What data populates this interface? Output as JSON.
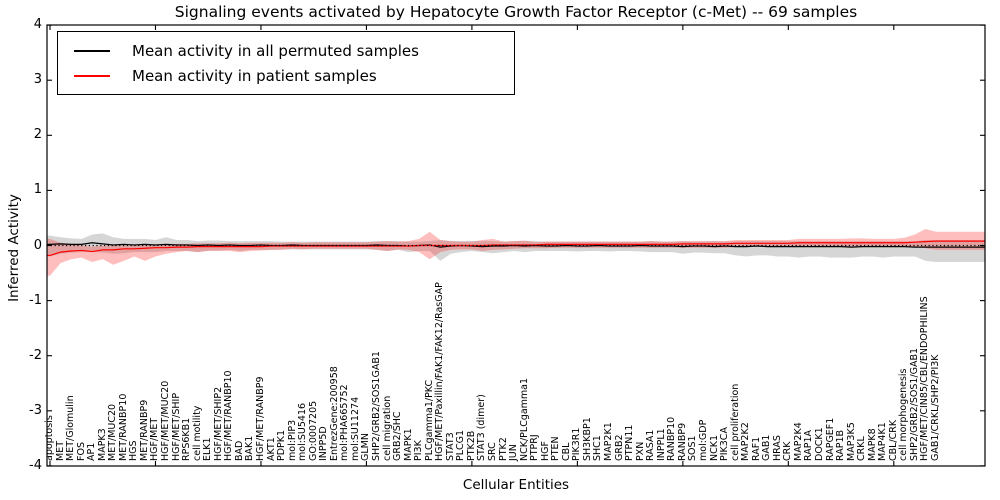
{
  "title": "Signaling events activated by Hepatocyte Growth Factor Receptor (c-Met) -- 69 samples",
  "legend": {
    "entries": [
      {
        "label": "Mean activity in all permuted samples",
        "color": "#000000"
      },
      {
        "label": "Mean activity in patient samples",
        "color": "#ff0000"
      }
    ]
  },
  "colors": {
    "permuted_line": "#000000",
    "patient_line": "#ff0000",
    "permuted_band": "rgba(120,120,120,0.30)",
    "patient_band": "rgba(255,40,40,0.30)",
    "axis": "#000000"
  },
  "chart_data": {
    "type": "line",
    "title": "Signaling events activated by Hepatocyte Growth Factor Receptor (c-Met) -- 69 samples",
    "xlabel": "Cellular Entities",
    "ylabel": "Inferred Activity",
    "ylim": [
      -4,
      4
    ],
    "yticks": [
      4,
      3,
      2,
      1,
      0,
      -1,
      -2,
      -3,
      -4
    ],
    "ytick_labels": [
      "4",
      "3",
      "2",
      "1",
      "0",
      "-1",
      "-2",
      "-3",
      "-4"
    ],
    "grid": false,
    "legend_position": "upper left",
    "zero_line": {
      "y": 0,
      "style": "dotted",
      "color": "#000000"
    },
    "categories": [
      "apoptosis",
      "MET",
      "MET/Glomulin",
      "FOS",
      "AP1",
      "MAPK3",
      "MET/MUC20",
      "MET/RANBP10",
      "HGS",
      "MET/RANBP9",
      "HGF/MET",
      "HGF/MET/MUC20",
      "HGF/MET/SHIP",
      "RPS6KB1",
      "cell motility",
      "ELK1",
      "HGF/MET/SHIP2",
      "HGF/MET/RANBP10",
      "BAD",
      "BAK1",
      "HGF/MET/RANBP9",
      "AKT1",
      "PDPK1",
      "mol:PIP3",
      "mol:SU5416",
      "GO:0007205",
      "INPP5D",
      "EntrezGene:200958",
      "mol:PHA665752",
      "mol:SU11274",
      "GLMN",
      "SHP2/GRB2/SOS1GAB1",
      "cell migration",
      "GRB2/SHC",
      "MAPK1",
      "PI3K",
      "PLCgamma1/PKC",
      "HGF/MET/Paxillin/FAK1/FAK12/RasGAP",
      "STAT3",
      "PLCG1",
      "PTK2B",
      "STAT3 (dimer)",
      "SRC",
      "PTK2",
      "JUN",
      "NCK/PLCgamma1",
      "PTPRJ",
      "HGF",
      "PTEN",
      "CBL",
      "PIK3R1",
      "SH3KBP1",
      "SHC1",
      "MAP2K1",
      "GRB2",
      "PTPN11",
      "PXN",
      "RASA1",
      "INPPL1",
      "RANBP10",
      "RANBP9",
      "SOS1",
      "mol:GDP",
      "NCK1",
      "PIK3CA",
      "cell proliferation",
      "MAP2K2",
      "RAF1",
      "GAB1",
      "HRAS",
      "CRK",
      "MAP2K4",
      "RAP1A",
      "DOCK1",
      "RAPGEF1",
      "RAP1B",
      "MAP3K5",
      "CRKL",
      "MAPK8",
      "MAP4K1",
      "CBL/CRK",
      "cell morphogenesis",
      "SHP2/GRB2/SOS1/GAB1",
      "HGF/MET/CIN85/CBL/ENDOPHILINS",
      "GAB1/CRKL/SHP2/PI3K"
    ],
    "series": [
      {
        "name": "Mean activity in all permuted samples",
        "color": "#000000",
        "values": [
          0.02,
          0.03,
          0.02,
          0.02,
          0.05,
          0.03,
          0.01,
          0.02,
          0.01,
          0.02,
          0.01,
          0.02,
          0.01,
          0.01,
          0.0,
          0.01,
          0.0,
          0.01,
          0.0,
          0.0,
          0.01,
          0.0,
          0.0,
          0.01,
          0.0,
          0.0,
          0.0,
          0.0,
          0.0,
          0.0,
          0.0,
          0.01,
          0.0,
          0.0,
          -0.01,
          0.0,
          0.01,
          -0.03,
          -0.01,
          0.0,
          -0.01,
          -0.02,
          -0.01,
          -0.01,
          0.0,
          -0.01,
          0.0,
          -0.01,
          -0.01,
          0.0,
          -0.01,
          -0.01,
          0.0,
          -0.01,
          -0.01,
          -0.01,
          0.0,
          -0.01,
          -0.01,
          -0.01,
          -0.02,
          -0.01,
          -0.01,
          -0.02,
          -0.01,
          -0.02,
          -0.02,
          -0.01,
          -0.02,
          -0.02,
          -0.02,
          -0.02,
          -0.02,
          -0.02,
          -0.02,
          -0.02,
          -0.03,
          -0.02,
          -0.02,
          -0.02,
          -0.02,
          -0.02,
          -0.03,
          -0.03,
          -0.03
        ]
      },
      {
        "name": "Mean activity in patient samples",
        "color": "#ff0000",
        "values": [
          -0.18,
          -0.12,
          -0.1,
          -0.09,
          -0.11,
          -0.08,
          -0.08,
          -0.06,
          -0.06,
          -0.05,
          -0.04,
          -0.04,
          -0.03,
          -0.03,
          -0.02,
          -0.02,
          -0.02,
          -0.02,
          -0.02,
          -0.02,
          -0.02,
          -0.01,
          -0.01,
          -0.01,
          -0.01,
          -0.01,
          -0.01,
          -0.01,
          -0.01,
          -0.01,
          -0.01,
          -0.01,
          -0.01,
          -0.01,
          -0.01,
          0.0,
          0.0,
          0.0,
          0.0,
          0.0,
          0.0,
          0.0,
          0.01,
          0.01,
          0.01,
          0.01,
          0.01,
          0.02,
          0.02,
          0.02,
          0.02,
          0.02,
          0.02,
          0.02,
          0.02,
          0.02,
          0.02,
          0.02,
          0.02,
          0.02,
          0.03,
          0.03,
          0.03,
          0.03,
          0.03,
          0.04,
          0.04,
          0.04,
          0.04,
          0.04,
          0.04,
          0.05,
          0.05,
          0.05,
          0.05,
          0.05,
          0.05,
          0.05,
          0.05,
          0.05,
          0.05,
          0.05,
          0.06,
          0.07,
          0.08
        ]
      }
    ],
    "bands": [
      {
        "name": "permuted samples range",
        "upper": [
          0.18,
          0.15,
          0.13,
          0.12,
          0.2,
          0.22,
          0.15,
          0.12,
          0.12,
          0.12,
          0.1,
          0.15,
          0.1,
          0.1,
          0.08,
          0.09,
          0.09,
          0.08,
          0.08,
          0.08,
          0.08,
          0.08,
          0.07,
          0.07,
          0.07,
          0.07,
          0.07,
          0.07,
          0.07,
          0.07,
          0.07,
          0.08,
          0.08,
          0.08,
          0.07,
          0.07,
          0.08,
          0.1,
          0.08,
          0.08,
          0.08,
          0.08,
          0.08,
          0.07,
          0.08,
          0.08,
          0.08,
          0.07,
          0.07,
          0.07,
          0.07,
          0.07,
          0.07,
          0.07,
          0.07,
          0.07,
          0.07,
          0.08,
          0.07,
          0.07,
          0.08,
          0.07,
          0.07,
          0.08,
          0.07,
          0.08,
          0.08,
          0.08,
          0.08,
          0.08,
          0.08,
          0.08,
          0.08,
          0.08,
          0.08,
          0.08,
          0.08,
          0.08,
          0.08,
          0.08,
          0.08,
          0.08,
          0.08,
          0.1,
          0.1
        ],
        "lower": [
          -0.2,
          -0.15,
          -0.13,
          -0.12,
          -0.12,
          -0.13,
          -0.15,
          -0.14,
          -0.12,
          -0.12,
          -0.12,
          -0.1,
          -0.1,
          -0.1,
          -0.12,
          -0.09,
          -0.09,
          -0.08,
          -0.1,
          -0.08,
          -0.08,
          -0.08,
          -0.07,
          -0.07,
          -0.07,
          -0.07,
          -0.07,
          -0.07,
          -0.07,
          -0.07,
          -0.07,
          -0.08,
          -0.1,
          -0.08,
          -0.12,
          -0.1,
          -0.1,
          -0.28,
          -0.15,
          -0.12,
          -0.1,
          -0.12,
          -0.14,
          -0.12,
          -0.1,
          -0.12,
          -0.1,
          -0.1,
          -0.1,
          -0.1,
          -0.11,
          -0.1,
          -0.1,
          -0.11,
          -0.1,
          -0.1,
          -0.11,
          -0.12,
          -0.12,
          -0.12,
          -0.15,
          -0.13,
          -0.13,
          -0.14,
          -0.14,
          -0.18,
          -0.2,
          -0.18,
          -0.18,
          -0.2,
          -0.2,
          -0.22,
          -0.2,
          -0.2,
          -0.22,
          -0.22,
          -0.22,
          -0.2,
          -0.2,
          -0.22,
          -0.2,
          -0.2,
          -0.2,
          -0.28,
          -0.3
        ]
      },
      {
        "name": "patient samples range",
        "upper": [
          0.12,
          0.05,
          0.03,
          0.0,
          -0.02,
          0.0,
          0.0,
          0.0,
          0.0,
          0.0,
          0.02,
          0.02,
          0.03,
          0.03,
          0.04,
          0.04,
          0.04,
          0.05,
          0.04,
          0.05,
          0.05,
          0.05,
          0.05,
          0.06,
          0.05,
          0.06,
          0.06,
          0.06,
          0.06,
          0.06,
          0.06,
          0.07,
          0.08,
          0.07,
          0.08,
          0.12,
          0.25,
          0.1,
          0.08,
          0.07,
          0.07,
          0.1,
          0.12,
          0.07,
          0.08,
          0.09,
          0.06,
          0.07,
          0.07,
          0.07,
          0.07,
          0.07,
          0.07,
          0.07,
          0.07,
          0.07,
          0.07,
          0.08,
          0.07,
          0.07,
          0.08,
          0.08,
          0.08,
          0.08,
          0.08,
          0.1,
          0.1,
          0.1,
          0.1,
          0.1,
          0.1,
          0.12,
          0.12,
          0.12,
          0.12,
          0.12,
          0.13,
          0.13,
          0.12,
          0.12,
          0.12,
          0.14,
          0.2,
          0.3,
          0.25
        ],
        "lower": [
          -0.55,
          -0.32,
          -0.25,
          -0.22,
          -0.3,
          -0.25,
          -0.35,
          -0.28,
          -0.2,
          -0.28,
          -0.2,
          -0.15,
          -0.12,
          -0.1,
          -0.12,
          -0.1,
          -0.1,
          -0.1,
          -0.12,
          -0.1,
          -0.09,
          -0.08,
          -0.08,
          -0.06,
          -0.07,
          -0.06,
          -0.06,
          -0.06,
          -0.06,
          -0.06,
          -0.06,
          -0.08,
          -0.1,
          -0.07,
          -0.08,
          -0.12,
          -0.25,
          -0.12,
          -0.08,
          -0.07,
          -0.07,
          -0.1,
          -0.08,
          -0.07,
          -0.06,
          -0.05,
          -0.05,
          -0.05,
          -0.04,
          -0.04,
          -0.04,
          -0.04,
          -0.04,
          -0.04,
          -0.04,
          -0.04,
          -0.04,
          -0.04,
          -0.04,
          -0.04,
          -0.04,
          -0.04,
          -0.04,
          -0.04,
          -0.04,
          -0.03,
          -0.02,
          -0.02,
          -0.02,
          -0.02,
          -0.02,
          -0.02,
          -0.02,
          -0.02,
          -0.02,
          -0.02,
          -0.02,
          -0.02,
          -0.02,
          -0.02,
          -0.02,
          -0.02,
          -0.02,
          -0.05,
          -0.08
        ]
      }
    ]
  }
}
